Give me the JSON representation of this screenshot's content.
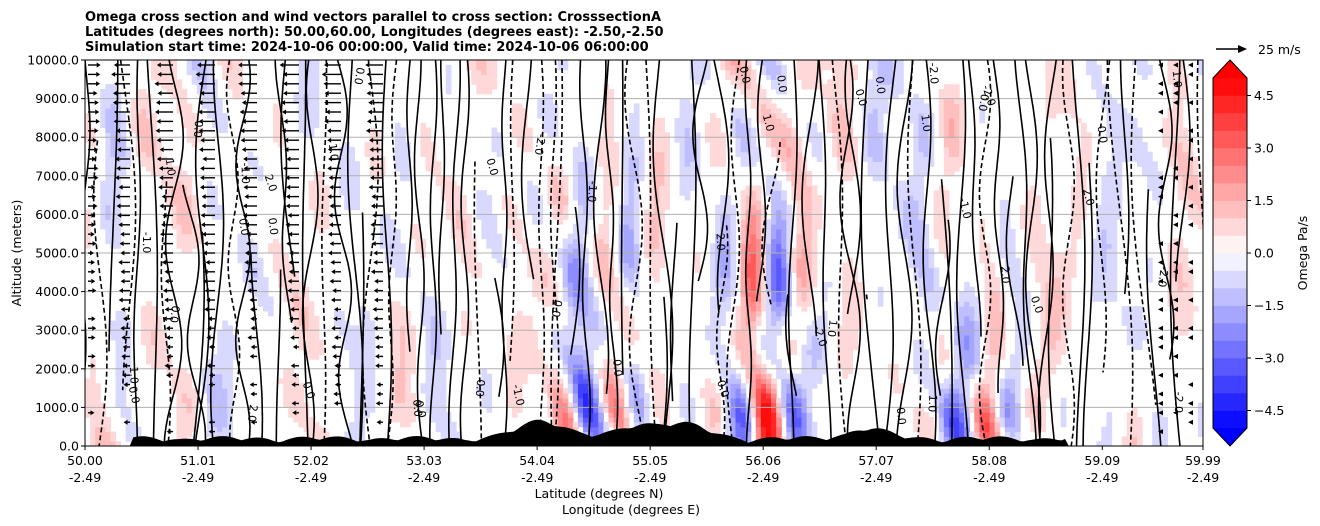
{
  "chart_data": {
    "type": "heatmap",
    "title_lines": [
      "Omega cross section and wind vectors parallel to cross section: CrosssectionA",
      "Latitudes (degrees north): 50.00,60.00, Longitudes (degrees east): -2.50,-2.50",
      "Simulation start time: 2024-10-06 00:00:00, Valid time: 2024-10-06 06:00:00"
    ],
    "xlabel_lines": [
      "Latitude (degrees N)",
      "Longitude (degrees E)"
    ],
    "ylabel": "Altitude (meters)",
    "xlim": [
      50.0,
      59.99
    ],
    "ylim": [
      0,
      10000
    ],
    "x_ticks": [
      50.0,
      51.01,
      52.02,
      53.03,
      54.04,
      55.05,
      56.06,
      57.07,
      58.08,
      59.09,
      59.99
    ],
    "x_tick_labels": [
      "50.00",
      "51.01",
      "52.02",
      "53.03",
      "54.04",
      "55.05",
      "56.06",
      "57.07",
      "58.08",
      "59.09",
      "59.99"
    ],
    "x_tick_sublabels": [
      "-2.49",
      "-2.49",
      "-2.49",
      "-2.49",
      "-2.49",
      "-2.49",
      "-2.49",
      "-2.49",
      "-2.49",
      "-2.49",
      "-2.49"
    ],
    "y_ticks": [
      0,
      1000,
      2000,
      3000,
      4000,
      5000,
      6000,
      7000,
      8000,
      9000,
      10000
    ],
    "y_tick_labels": [
      "0.0",
      "1000.0",
      "2000.0",
      "3000.0",
      "4000.0",
      "5000.0",
      "6000.0",
      "7000.0",
      "8000.0",
      "9000.0",
      "10000.0"
    ],
    "horizontal_grid": true,
    "colorbar": {
      "label": "Omega Pa/s",
      "range": [
        -5.0,
        5.0
      ],
      "ticks": [
        4.5,
        3.0,
        1.5,
        0.0,
        -1.5,
        -3.0,
        -4.5
      ],
      "tick_labels": [
        "4.5",
        "3.0",
        "1.5",
        "0.0",
        "−1.5",
        "−3.0",
        "−4.5"
      ],
      "levels": 20,
      "extend": "both",
      "cmap": "bwr",
      "position": "right"
    },
    "quiver_key": {
      "label": "25 m/s",
      "position": "top-right"
    },
    "contour_labels": [
      "0.0",
      "-1.0",
      "1.0",
      "0.0",
      "-1.0",
      "1.0",
      "0.0",
      "2.0",
      "-2.0",
      "0.0"
    ],
    "colors": {
      "positive": "#ff0000",
      "negative": "#0000ff",
      "neutral": "#ffffff",
      "contour": "#000000",
      "terrain": "#000000"
    }
  }
}
